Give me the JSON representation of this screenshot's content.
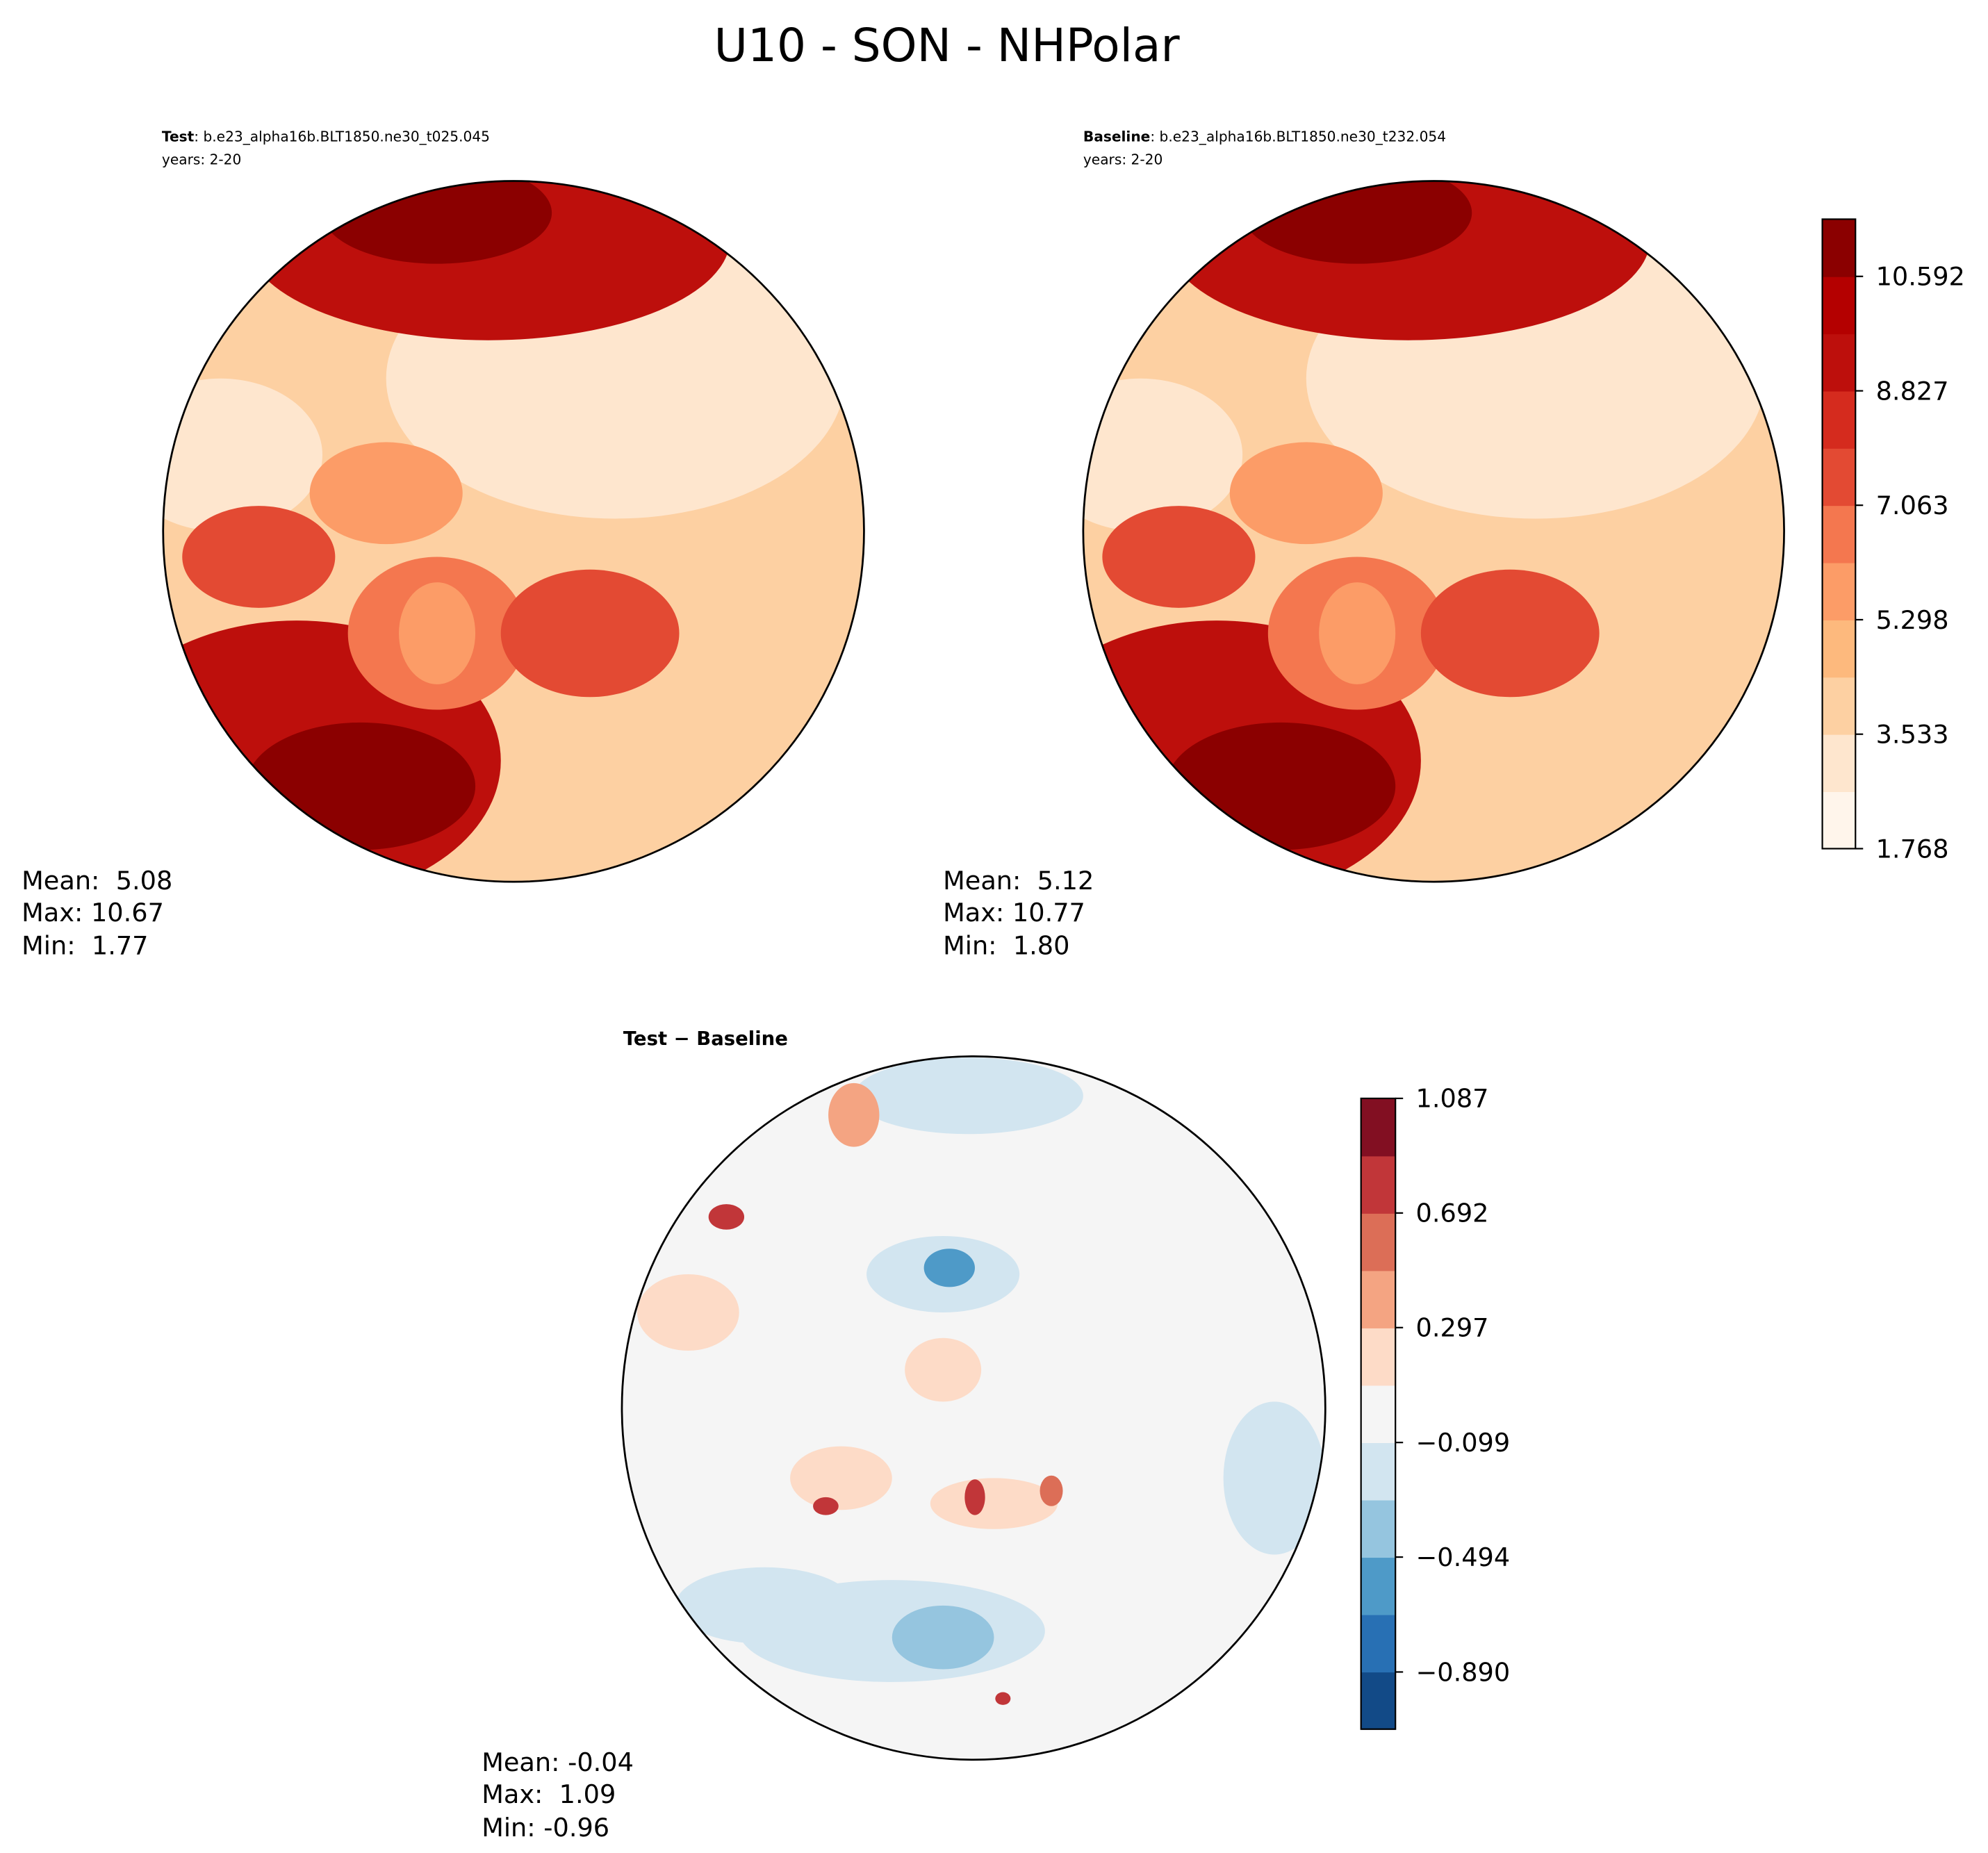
{
  "title": "U10 - SON - NHPolar",
  "panels": [
    {
      "label": "Test",
      "case": ": b.e23_alpha16b.BLT1850.ne30_t025.045",
      "years": "years: 2-20",
      "stats": [
        "Mean:  5.08",
        "Max: 10.67",
        "Min:  1.77"
      ]
    },
    {
      "label": "Baseline",
      "case": ": b.e23_alpha16b.BLT1850.ne30_t232.054",
      "years": "years: 2-20",
      "stats": [
        "Mean:  5.12",
        "Max: 10.77",
        "Min:  1.80"
      ]
    },
    {
      "label": "Test − Baseline",
      "stats": [
        "Mean: -0.04",
        "Max:  1.09",
        "Min: -0.96"
      ]
    }
  ],
  "colorbars": [
    {
      "clim": [
        1.768,
        11.474
      ],
      "colors": [
        "#fff5eb",
        "#fee6ce",
        "#fdd0a2",
        "#fdb97d",
        "#fc9c67",
        "#f4774f",
        "#e34a33",
        "#d52b1e",
        "#bd0f0c",
        "#b40000",
        "#8b0000"
      ],
      "ticks": [
        1.768,
        3.533,
        5.298,
        7.063,
        8.827,
        10.592
      ]
    },
    {
      "clim": [
        -1.087,
        1.087
      ],
      "colors": [
        "#124a87",
        "#2870b4",
        "#4e9ac8",
        "#95c5df",
        "#d2e5f0",
        "#f5f5f5",
        "#fddbc7",
        "#f4a482",
        "#dc6e57",
        "#c13639",
        "#820f22"
      ],
      "ticks": [
        {
          "value": -0.89,
          "label": "−0.890"
        },
        {
          "value": -0.494,
          "label": "−0.494"
        },
        {
          "value": -0.099,
          "label": "−0.099"
        },
        0.297,
        0.692,
        1.087
      ]
    }
  ]
}
